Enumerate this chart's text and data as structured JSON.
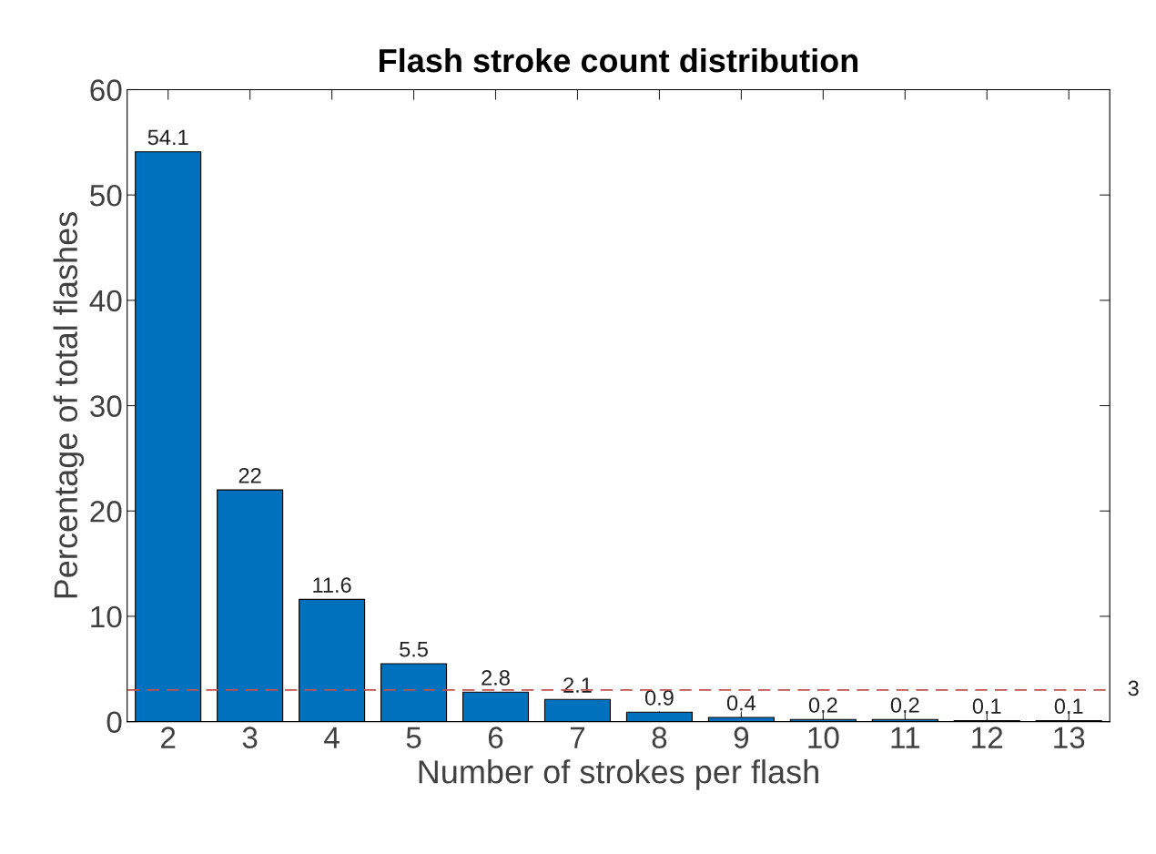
{
  "chart_data": {
    "type": "bar",
    "title": "Flash stroke count distribution",
    "xlabel": "Number of strokes per flash",
    "ylabel": "Percentage of total flashes",
    "categories": [
      "2",
      "3",
      "4",
      "5",
      "6",
      "7",
      "8",
      "9",
      "10",
      "11",
      "12",
      "13"
    ],
    "values": [
      54.1,
      22,
      11.6,
      5.5,
      2.8,
      2.1,
      0.9,
      0.4,
      0.2,
      0.2,
      0.1,
      0.1
    ],
    "color": "#0072bd",
    "data_labels": true,
    "ylim": [
      0,
      60
    ],
    "yticks": [
      0,
      10,
      20,
      30,
      40,
      50,
      60
    ],
    "ref_lines": [
      {
        "axis": "y",
        "value": 3,
        "label": "3",
        "color": "#c0504d",
        "line_style": "dashed"
      }
    ],
    "grid": false,
    "legend": false
  }
}
